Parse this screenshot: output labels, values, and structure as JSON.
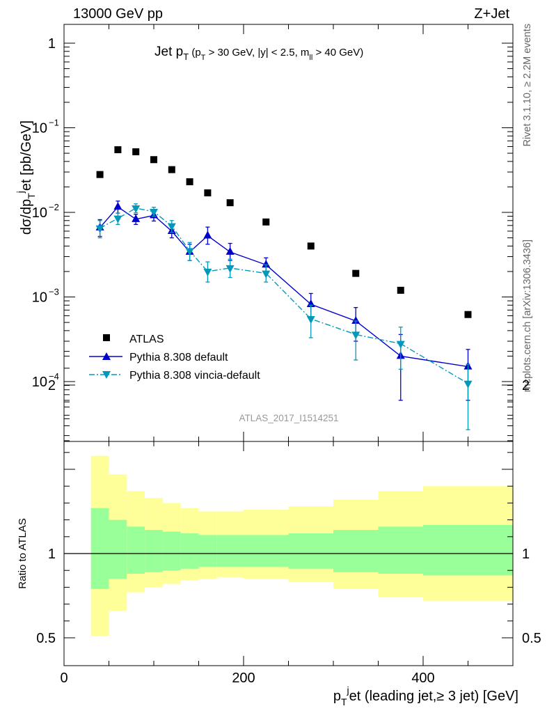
{
  "header": {
    "left": "13000 GeV pp",
    "right": "Z+Jet",
    "side_rivet": "Rivet 3.1.10, ≥ 2.2M events",
    "side_mcplots": "mcplots.cern.ch [arXiv:1306.3436]",
    "analysis_tag": "ATLAS_2017_I1514251"
  },
  "title": {
    "main": "Jet p",
    "main_sub": "T",
    "cut_open": " (p",
    "cut_sub": "T",
    "cut_mid": " > 30 GeV, |y| < 2.5, m",
    "cut_sub2": "ll",
    "cut_close": " > 40 GeV)"
  },
  "axes": {
    "ylabel_main": "dσ/dp",
    "ylabel_sub": "T",
    "ylabel_sup": "j",
    "ylabel_rest": "et [pb/GeV]",
    "ylabel_ratio": "Ratio to ATLAS",
    "xlabel_main": "p",
    "xlabel_sub": "T",
    "xlabel_sup": "j",
    "xlabel_rest": "et (leading jet,≥ 3 jet) [GeV]"
  },
  "chart_data": {
    "type": "scatter",
    "xlim": [
      0,
      500
    ],
    "ylim": [
      2e-05,
      1.5
    ],
    "yscale": "log",
    "ratio_ylim": [
      0.4,
      2.3
    ],
    "x_ticks": [
      {
        "value": 0,
        "label": "0"
      },
      {
        "value": 200,
        "label": "200"
      },
      {
        "value": 400,
        "label": "400"
      }
    ],
    "y_ticks": [
      {
        "value": 1,
        "base": "1",
        "exp": ""
      },
      {
        "value": 0.1,
        "base": "10",
        "exp": "−1"
      },
      {
        "value": 0.01,
        "base": "10",
        "exp": "−2"
      },
      {
        "value": 0.001,
        "base": "10",
        "exp": "−3"
      },
      {
        "value": 0.0001,
        "base": "10",
        "exp": "−4"
      }
    ],
    "ratio_ticks": [
      {
        "value": 0.5,
        "label": "0.5"
      },
      {
        "value": 1,
        "label": "1"
      },
      {
        "value": 2,
        "label": "2"
      }
    ],
    "legend": {
      "position": "bottom-left"
    },
    "series": [
      {
        "name": "ATLAS",
        "color": "#000000",
        "marker": "square",
        "line": "none",
        "x": [
          40,
          60,
          80,
          100,
          120,
          140,
          160,
          185,
          225,
          275,
          325,
          375,
          450
        ],
        "y": [
          0.028,
          0.055,
          0.052,
          0.042,
          0.032,
          0.023,
          0.017,
          0.013,
          0.0077,
          0.004,
          0.0019,
          0.0012,
          0.00062
        ]
      },
      {
        "name": "Pythia 8.308 default",
        "color": "#0000cc",
        "marker": "triangle-up",
        "line": "solid",
        "x": [
          40,
          60,
          80,
          100,
          120,
          140,
          160,
          185,
          225,
          275,
          325,
          375,
          450
        ],
        "y": [
          0.0066,
          0.0116,
          0.0083,
          0.0092,
          0.006,
          0.0034,
          0.0053,
          0.0034,
          0.0024,
          0.00082,
          0.00052,
          0.0002,
          0.00015
        ],
        "err_lo": [
          0.0052,
          0.0098,
          0.0072,
          0.0079,
          0.005,
          0.0027,
          0.0042,
          0.0027,
          0.0019,
          0.00055,
          0.0003,
          6e-05,
          6e-05
        ],
        "err_hi": [
          0.0082,
          0.0136,
          0.0095,
          0.0106,
          0.0072,
          0.0042,
          0.0067,
          0.0043,
          0.0029,
          0.0011,
          0.00075,
          0.00036,
          0.00024
        ]
      },
      {
        "name": "Pythia 8.308 vincia-default",
        "color": "#0099bb",
        "marker": "triangle-down",
        "line": "dashdot",
        "x": [
          40,
          60,
          80,
          100,
          120,
          140,
          160,
          185,
          225,
          275,
          325,
          375,
          450
        ],
        "y": [
          0.0065,
          0.0085,
          0.0112,
          0.0102,
          0.0069,
          0.0035,
          0.002,
          0.0022,
          0.0019,
          0.00055,
          0.00036,
          0.00028,
          9.5e-05
        ],
        "err_lo": [
          0.005,
          0.0072,
          0.0099,
          0.009,
          0.0058,
          0.0027,
          0.0015,
          0.0017,
          0.0015,
          0.00033,
          0.00018,
          0.00014,
          2.7e-05
        ],
        "err_hi": [
          0.008,
          0.0098,
          0.0126,
          0.0115,
          0.008,
          0.0044,
          0.0026,
          0.0028,
          0.0024,
          0.0008,
          0.00052,
          0.00044,
          0.00016
        ]
      }
    ],
    "ratio_bands": {
      "edges": [
        30,
        50,
        70,
        90,
        110,
        130,
        150,
        170,
        200,
        250,
        300,
        350,
        400,
        500
      ],
      "inner_lo": [
        0.79,
        0.85,
        0.88,
        0.89,
        0.9,
        0.91,
        0.92,
        0.92,
        0.92,
        0.91,
        0.89,
        0.88,
        0.87
      ],
      "inner_hi": [
        1.27,
        1.2,
        1.16,
        1.14,
        1.13,
        1.12,
        1.11,
        1.11,
        1.11,
        1.12,
        1.14,
        1.16,
        1.17
      ],
      "outer_lo": [
        0.51,
        0.66,
        0.77,
        0.8,
        0.82,
        0.84,
        0.85,
        0.86,
        0.85,
        0.83,
        0.79,
        0.74,
        0.72
      ],
      "outer_hi": [
        1.58,
        1.47,
        1.37,
        1.33,
        1.3,
        1.27,
        1.25,
        1.25,
        1.26,
        1.28,
        1.32,
        1.37,
        1.4
      ],
      "inner_color": "#99ff99",
      "outer_color": "#ffff99"
    }
  }
}
